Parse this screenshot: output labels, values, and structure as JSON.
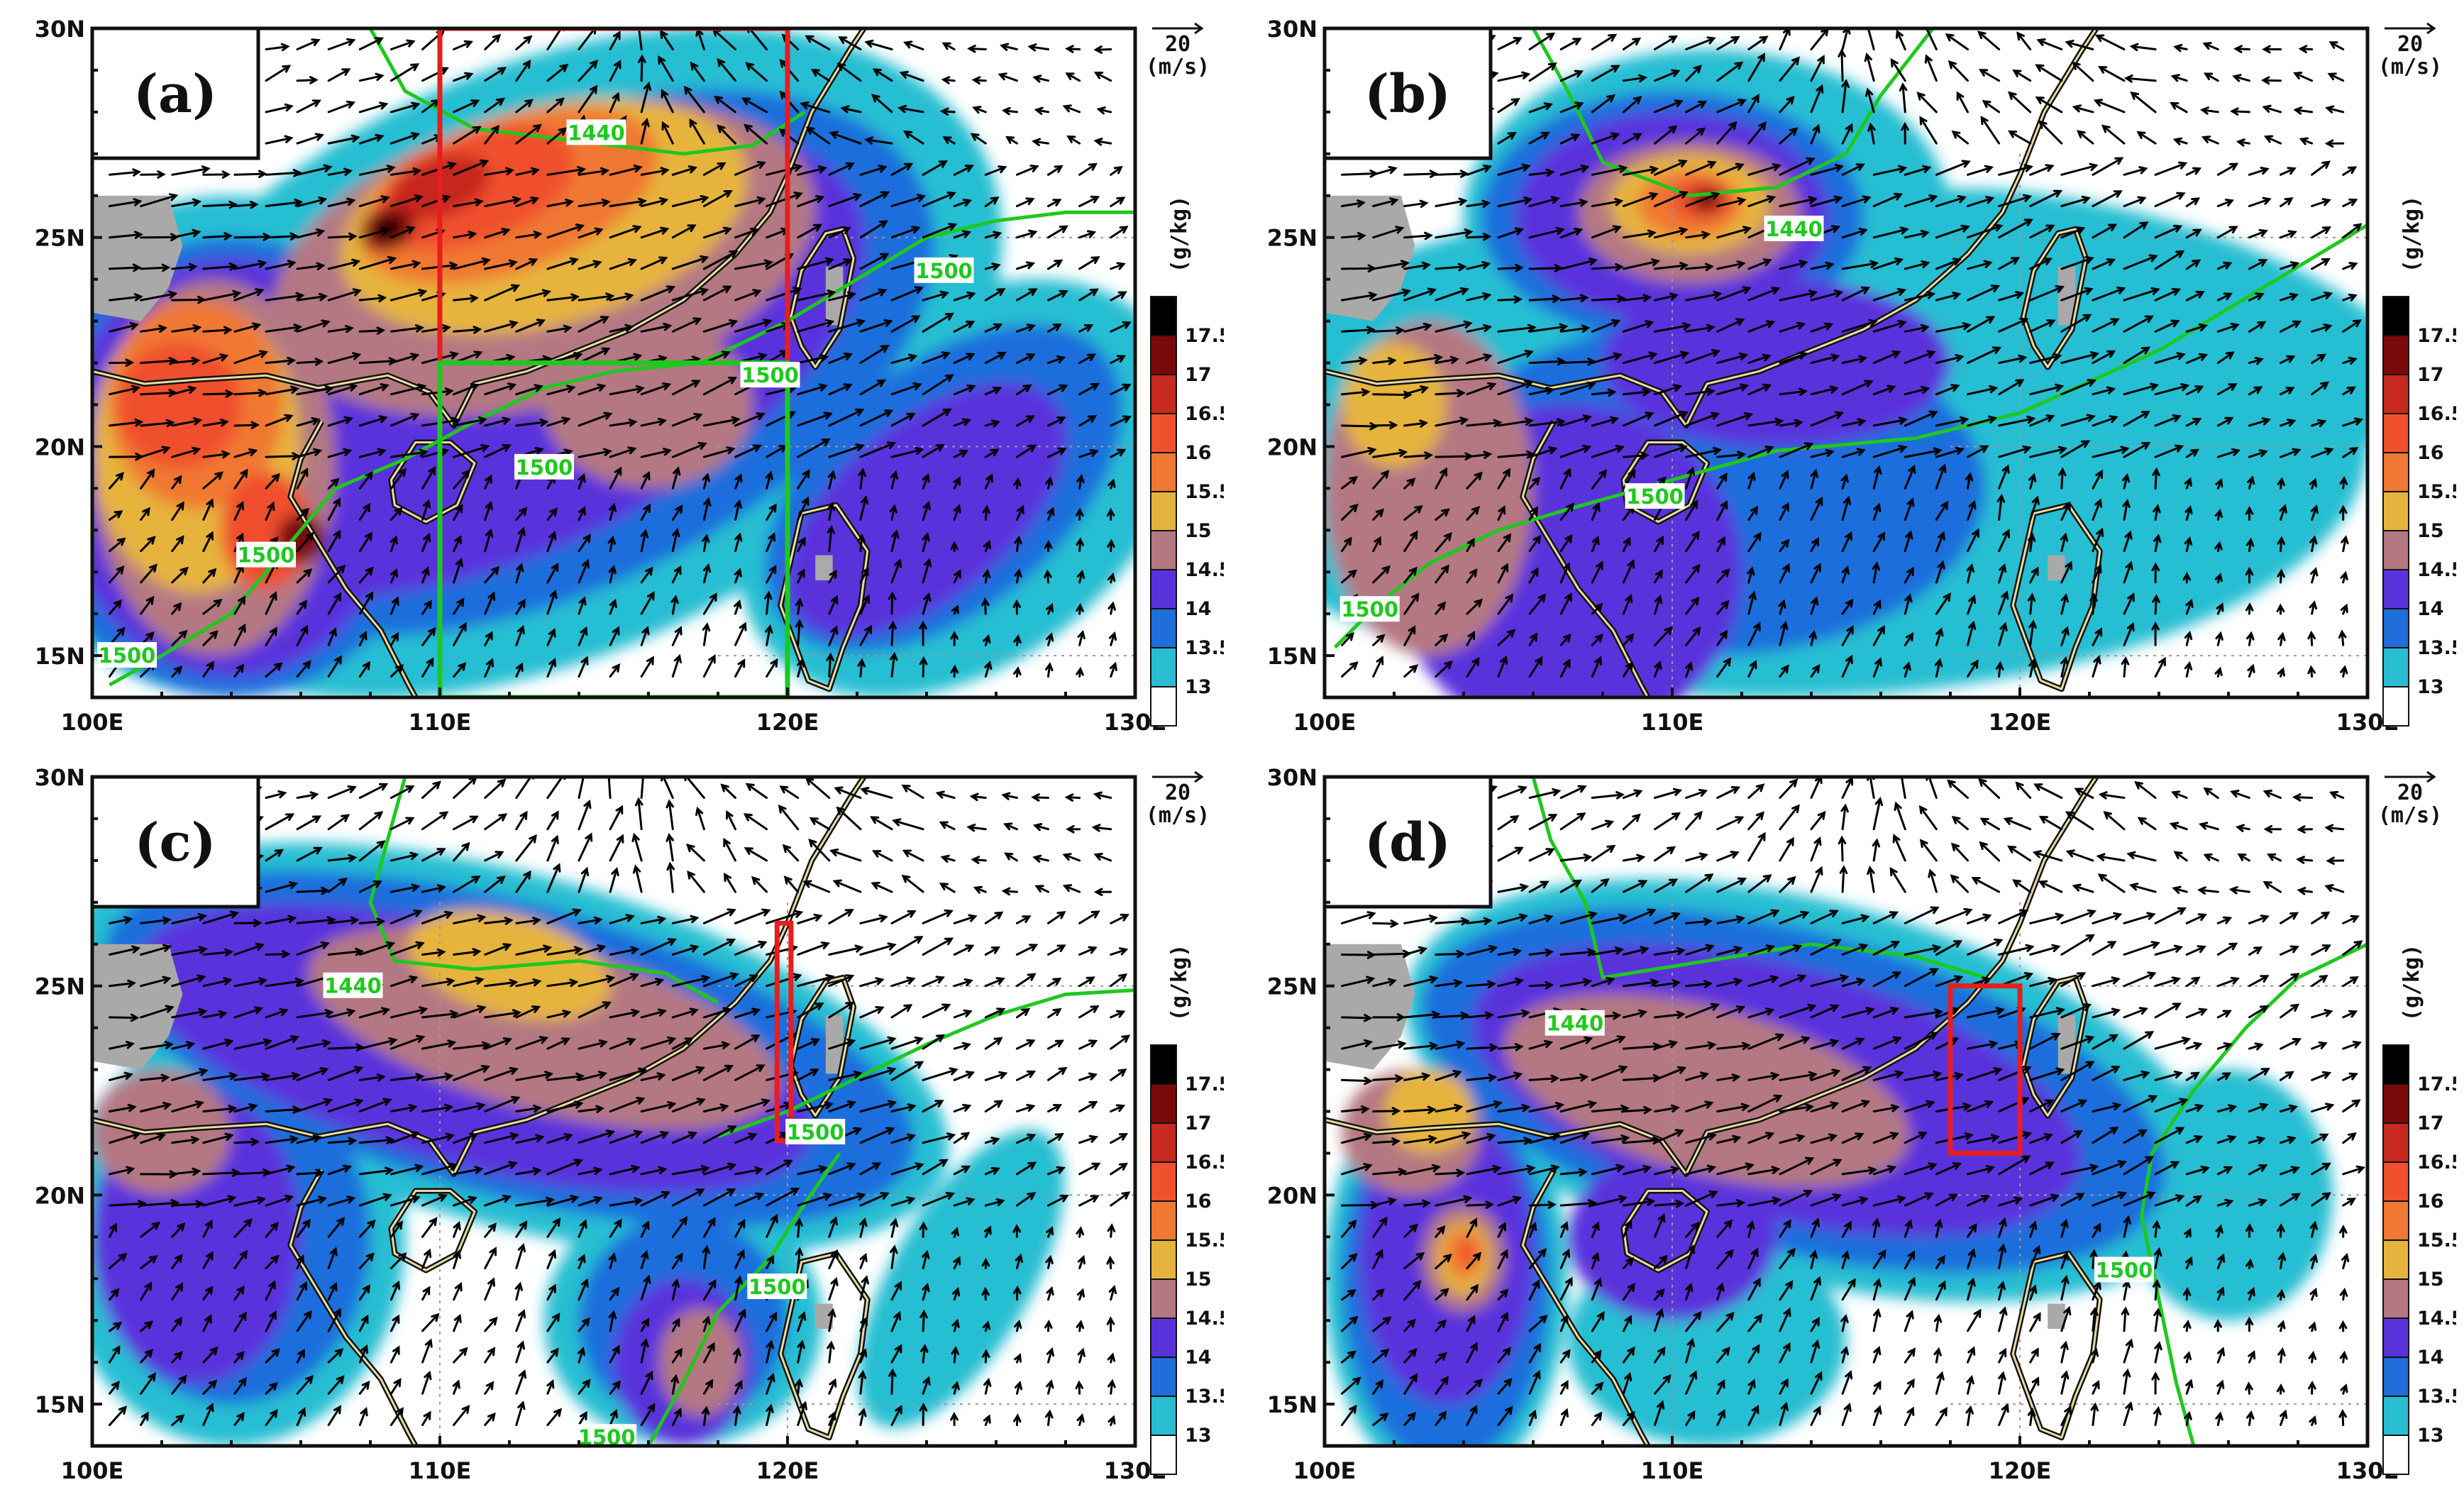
{
  "figure": {
    "x_ticks": [
      "100E",
      "110E",
      "120E",
      "130E"
    ],
    "y_ticks": [
      "30N",
      "25N",
      "20N",
      "15N"
    ],
    "vector_reference": {
      "value": "20",
      "unit": "(m/s)"
    },
    "colorbar": {
      "unit": "(g/kg)",
      "levels": [
        "17.5",
        "17",
        "16.5",
        "16",
        "15.5",
        "15",
        "14.5",
        "14",
        "13.5",
        "13"
      ],
      "colors": [
        "#000000",
        "#7a0a0a",
        "#c8281e",
        "#f0502d",
        "#f07832",
        "#e6b43c",
        "#b47882",
        "#5a32dc",
        "#1e6edc",
        "#28bed2",
        "#ffffff"
      ]
    },
    "contour_color": "#1ec81e",
    "land_gray": "#a9a9a9"
  },
  "panels": [
    {
      "label": "(a)",
      "contour_labels": [
        "1440",
        "1500",
        "1500",
        "1500",
        "1500",
        "1500"
      ],
      "boxes": [
        {
          "color": "#e61e1e",
          "lon": [
            110,
            120
          ],
          "lat": [
            22,
            30
          ]
        },
        {
          "color": "#1ec81e",
          "lon": [
            110,
            120
          ],
          "lat": [
            14,
            22
          ]
        }
      ]
    },
    {
      "label": "(b)",
      "contour_labels": [
        "1440",
        "1500",
        "1500"
      ],
      "boxes": []
    },
    {
      "label": "(c)",
      "contour_labels": [
        "1440",
        "1500",
        "1500",
        "1500"
      ],
      "boxes": [
        {
          "color": "#e61e1e",
          "lon": [
            119.7,
            120.1
          ],
          "lat": [
            21.3,
            26.5
          ]
        }
      ]
    },
    {
      "label": "(d)",
      "contour_labels": [
        "1440",
        "1500"
      ],
      "boxes": [
        {
          "color": "#e61e1e",
          "lon": [
            118,
            120
          ],
          "lat": [
            21,
            25
          ]
        }
      ]
    }
  ]
}
